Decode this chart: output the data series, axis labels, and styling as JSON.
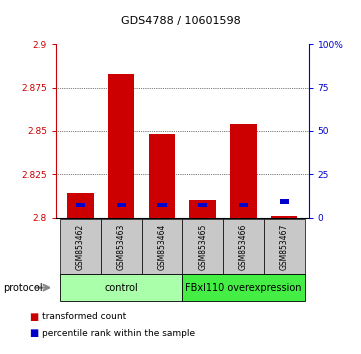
{
  "title": "GDS4788 / 10601598",
  "samples": [
    "GSM853462",
    "GSM853463",
    "GSM853464",
    "GSM853465",
    "GSM853466",
    "GSM853467"
  ],
  "red_heights": [
    2.814,
    2.883,
    2.848,
    2.81,
    2.854,
    2.801
  ],
  "blue_heights_abs": [
    2.806,
    2.806,
    2.806,
    2.806,
    2.806,
    2.808
  ],
  "red_base": 2.8,
  "ylim_left": [
    2.8,
    2.9
  ],
  "ylim_right": [
    0,
    100
  ],
  "yticks_left": [
    2.8,
    2.825,
    2.85,
    2.875,
    2.9
  ],
  "yticks_right": [
    0,
    25,
    50,
    75,
    100
  ],
  "groups": [
    {
      "label": "control",
      "start": 0,
      "end": 3,
      "color": "#AAFFAA"
    },
    {
      "label": "FBxl110 overexpression",
      "start": 3,
      "end": 6,
      "color": "#44EE44"
    }
  ],
  "protocol_label": "protocol",
  "bar_width": 0.65,
  "red_color": "#CC0000",
  "blue_color": "#0000CC",
  "bg_color": "#C8C8C8",
  "grid_color": "#000000",
  "title_fontsize": 8,
  "tick_fontsize": 6.5,
  "sample_fontsize": 5.5,
  "group_fontsize": 7,
  "legend_fontsize": 6.5,
  "protocol_fontsize": 7
}
